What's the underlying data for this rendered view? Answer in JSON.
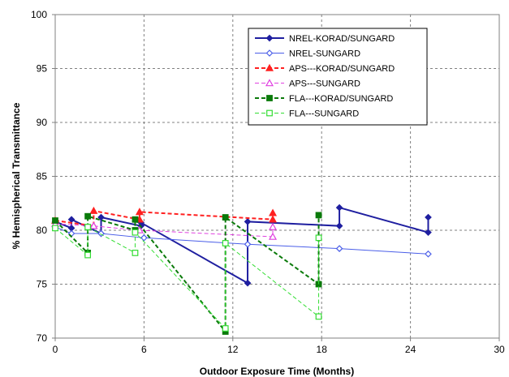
{
  "chart_data": {
    "type": "line",
    "title": "",
    "xlabel": "Outdoor Exposure Time (Months)",
    "ylabel": "% Hemispherical Transmittance",
    "xlim": [
      0,
      30
    ],
    "ylim": [
      70,
      100
    ],
    "x_ticks": [
      "0",
      "6",
      "12",
      "18",
      "24",
      "30"
    ],
    "y_ticks": [
      "70",
      "75",
      "80",
      "85",
      "90",
      "95",
      "100"
    ],
    "grid": true,
    "legend_position": "top-right",
    "series": [
      {
        "name": "NREL-KORAD/SUNGARD",
        "color": "#1f1fa0",
        "dash": "solid",
        "marker": "diamond-filled",
        "width": 2,
        "x": [
          0,
          1.1,
          1.1,
          3.1,
          3.1,
          5.8,
          5.8,
          13,
          13,
          19.2,
          19.2,
          25.2,
          25.2
        ],
        "y": [
          80.8,
          80.2,
          81.0,
          79.7,
          81.2,
          80.4,
          80.7,
          75.1,
          80.8,
          80.4,
          82.1,
          79.8,
          81.2
        ]
      },
      {
        "name": "NREL-SUNGARD",
        "color": "#4a5ee8",
        "dash": "solid",
        "marker": "diamond-open",
        "width": 1,
        "x": [
          0,
          1.1,
          3.1,
          6.0,
          13,
          19.2,
          25.2
        ],
        "y": [
          80.3,
          79.7,
          79.7,
          79.3,
          78.7,
          78.3,
          77.8
        ]
      },
      {
        "name": "APS---KORAD/SUNGARD",
        "color": "#ff2020",
        "dash": "dashed",
        "marker": "triangle-filled",
        "width": 2,
        "x": [
          0,
          2.6,
          2.6,
          5.7,
          5.7,
          14.7,
          14.7
        ],
        "y": [
          80.9,
          80.4,
          81.8,
          81.0,
          81.7,
          81.0,
          81.6
        ]
      },
      {
        "name": "APS---SUNGARD",
        "color": "#e040e0",
        "dash": "dashed",
        "marker": "triangle-open",
        "width": 1,
        "x": [
          0,
          2.6,
          5.7,
          14.7,
          14.7
        ],
        "y": [
          80.6,
          80.4,
          80.0,
          79.4,
          80.3
        ]
      },
      {
        "name": "FLA---KORAD/SUNGARD",
        "color": "#0a7a0a",
        "dash": "dashed",
        "marker": "square-filled",
        "width": 2,
        "x": [
          0,
          2.2,
          2.2,
          5.4,
          5.4,
          11.5,
          11.5,
          17.8,
          17.8
        ],
        "y": [
          80.9,
          77.9,
          81.3,
          80.0,
          81.0,
          70.6,
          81.2,
          75.0,
          81.4
        ]
      },
      {
        "name": "FLA---SUNGARD",
        "color": "#33dd33",
        "dash": "dashed",
        "marker": "square-open",
        "width": 1,
        "x": [
          0,
          2.2,
          2.2,
          5.4,
          5.4,
          11.5,
          11.5,
          17.8,
          17.8
        ],
        "y": [
          80.2,
          77.7,
          80.3,
          77.9,
          79.8,
          70.9,
          78.8,
          72.0,
          79.3
        ]
      }
    ]
  }
}
